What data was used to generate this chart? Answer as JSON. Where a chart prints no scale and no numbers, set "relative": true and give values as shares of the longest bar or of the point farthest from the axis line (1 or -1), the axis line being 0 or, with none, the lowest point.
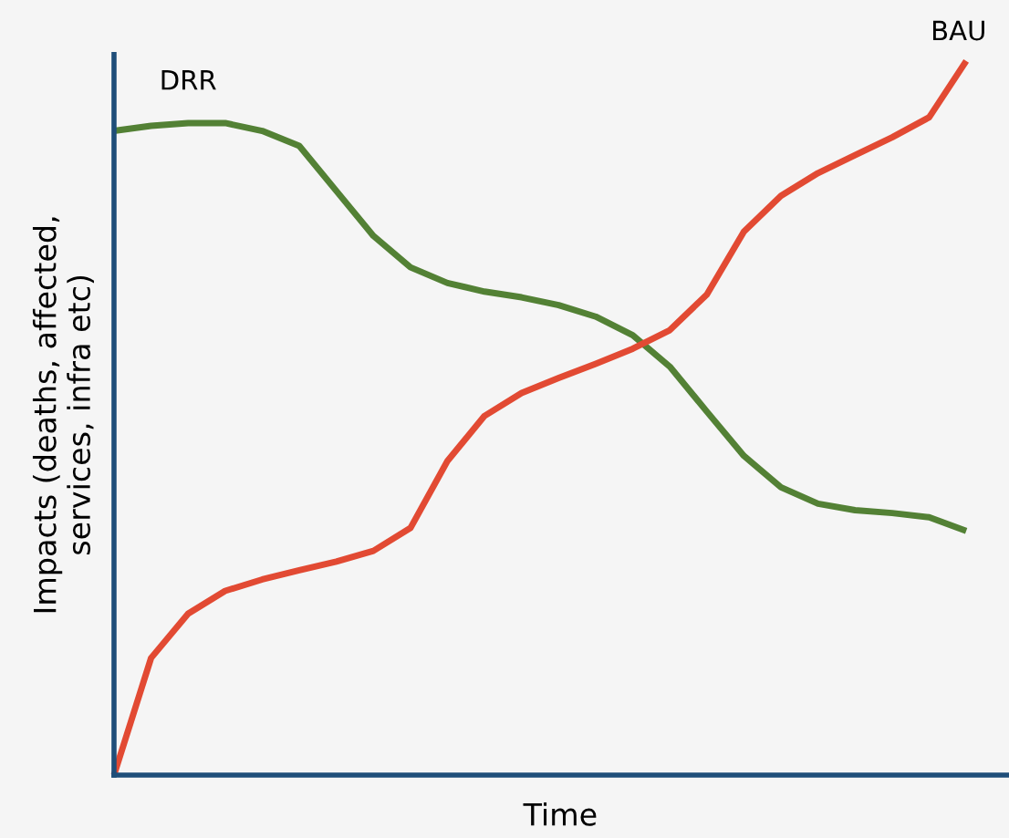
{
  "chart_data": {
    "type": "line",
    "relative": true,
    "xlabel": "Time",
    "ylabel": "Impacts (deaths, affected,\nservices, infra etc)",
    "categories": [
      null,
      null,
      null,
      null,
      null,
      null,
      null,
      null,
      null,
      null,
      null,
      null,
      null,
      null,
      null,
      null,
      null,
      null,
      null,
      null,
      null,
      null,
      null,
      null
    ],
    "series": [
      {
        "name": "DRR",
        "color": "#538135",
        "values": [
          0.902,
          0.909,
          0.913,
          0.913,
          0.902,
          0.881,
          0.818,
          0.755,
          0.711,
          0.689,
          0.677,
          0.669,
          0.658,
          0.642,
          0.616,
          0.572,
          0.509,
          0.447,
          0.403,
          0.38,
          0.371,
          0.367,
          0.361,
          0.342
        ]
      },
      {
        "name": "BAU",
        "color": "#e24a33",
        "values": [
          0,
          0.164,
          0.226,
          0.258,
          0.274,
          0.287,
          0.299,
          0.314,
          0.346,
          0.44,
          0.503,
          0.535,
          0.556,
          0.576,
          0.597,
          0.623,
          0.673,
          0.761,
          0.811,
          0.843,
          0.868,
          0.893,
          0.921,
          1.0
        ]
      }
    ],
    "legend": false,
    "grid": false
  }
}
